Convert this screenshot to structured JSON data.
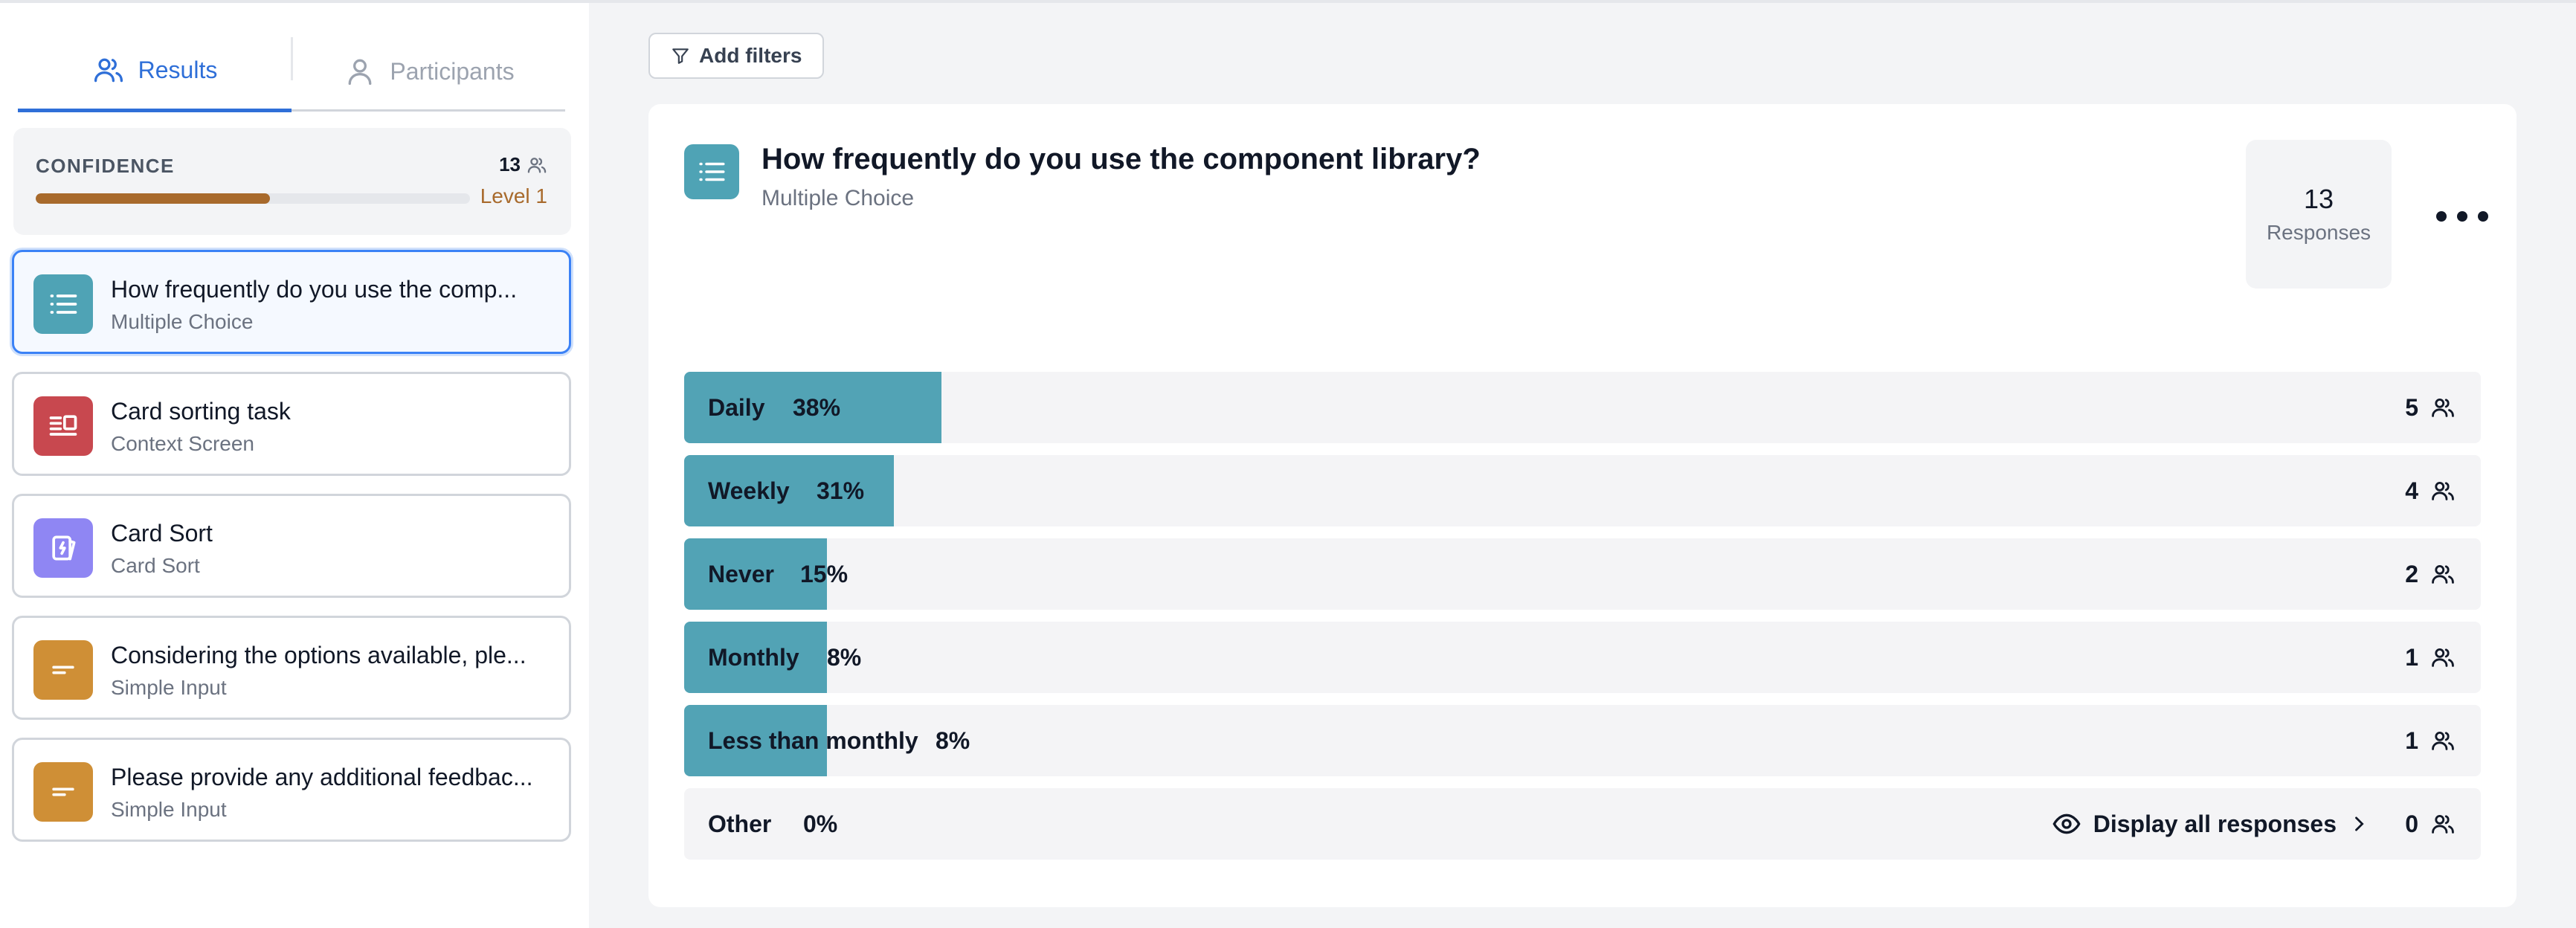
{
  "tabs": {
    "results": "Results",
    "participants": "Participants"
  },
  "confidence": {
    "title": "CONFIDENCE",
    "count": "13",
    "level": "Level 1",
    "progress": 0.54,
    "color": "#a86a2c"
  },
  "questions": [
    {
      "title": "How frequently do you use the comp...",
      "type": "Multiple Choice",
      "icon": "list-icon",
      "color": "#4fa3b5",
      "selected": true
    },
    {
      "title": "Card sorting task",
      "type": "Context Screen",
      "icon": "context-screen-icon",
      "color": "#c8484f",
      "selected": false
    },
    {
      "title": "Card Sort",
      "type": "Card Sort",
      "icon": "card-sort-icon",
      "color": "#8f86f3",
      "selected": false
    },
    {
      "title": "Considering the options available, ple...",
      "type": "Simple Input",
      "icon": "text-input-icon",
      "color": "#cf8f36",
      "selected": false
    },
    {
      "title": "Please provide any additional feedbac...",
      "type": "Simple Input",
      "icon": "text-input-icon",
      "color": "#cf8f36",
      "selected": false
    }
  ],
  "toolbar": {
    "filters_label": "Add filters"
  },
  "panel": {
    "title": "How frequently do you use the component library?",
    "subtitle": "Multiple Choice",
    "responses_count": "13",
    "responses_label": "Responses"
  },
  "chart_data": {
    "type": "bar",
    "orientation": "horizontal",
    "categories": [
      "Daily",
      "Weekly",
      "Never",
      "Monthly",
      "Less than monthly",
      "Other"
    ],
    "percent_labels": [
      "38%",
      "31%",
      "15%",
      "8%",
      "8%",
      "0%"
    ],
    "values": [
      38,
      31,
      15,
      8,
      8,
      0
    ],
    "counts": [
      "5",
      "4",
      "2",
      "1",
      "1",
      "0"
    ],
    "bar_color": "#52a3b5",
    "other_action": "Display all responses"
  }
}
